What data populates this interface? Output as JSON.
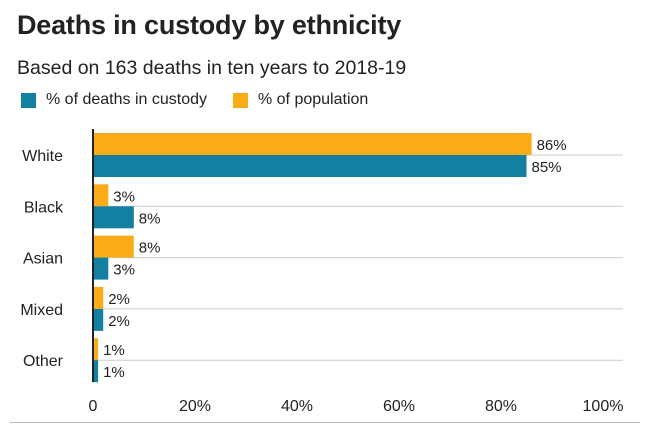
{
  "chart_data": {
    "type": "bar",
    "orientation": "horizontal",
    "title": "Deaths in custody by ethnicity",
    "subtitle": "Based on 163 deaths in ten years to 2018-19",
    "categories": [
      "White",
      "Black",
      "Asian",
      "Mixed",
      "Other"
    ],
    "series": [
      {
        "name": "% of population",
        "values": [
          86,
          3,
          8,
          2,
          1
        ],
        "color": "#FAAB18"
      },
      {
        "name": "% of deaths in custody",
        "values": [
          85,
          8,
          3,
          2,
          1
        ],
        "color": "#1380A1"
      }
    ],
    "legend_order": [
      1,
      0
    ],
    "value_suffix": "%",
    "xlim": [
      0,
      100
    ],
    "xticks": [
      0,
      20,
      40,
      60,
      80,
      100
    ],
    "xtick_labels": [
      "0",
      "20%",
      "40%",
      "60%",
      "80%",
      "100%"
    ],
    "grid": "horizontal lines between categories",
    "legend_position": "top-left"
  }
}
